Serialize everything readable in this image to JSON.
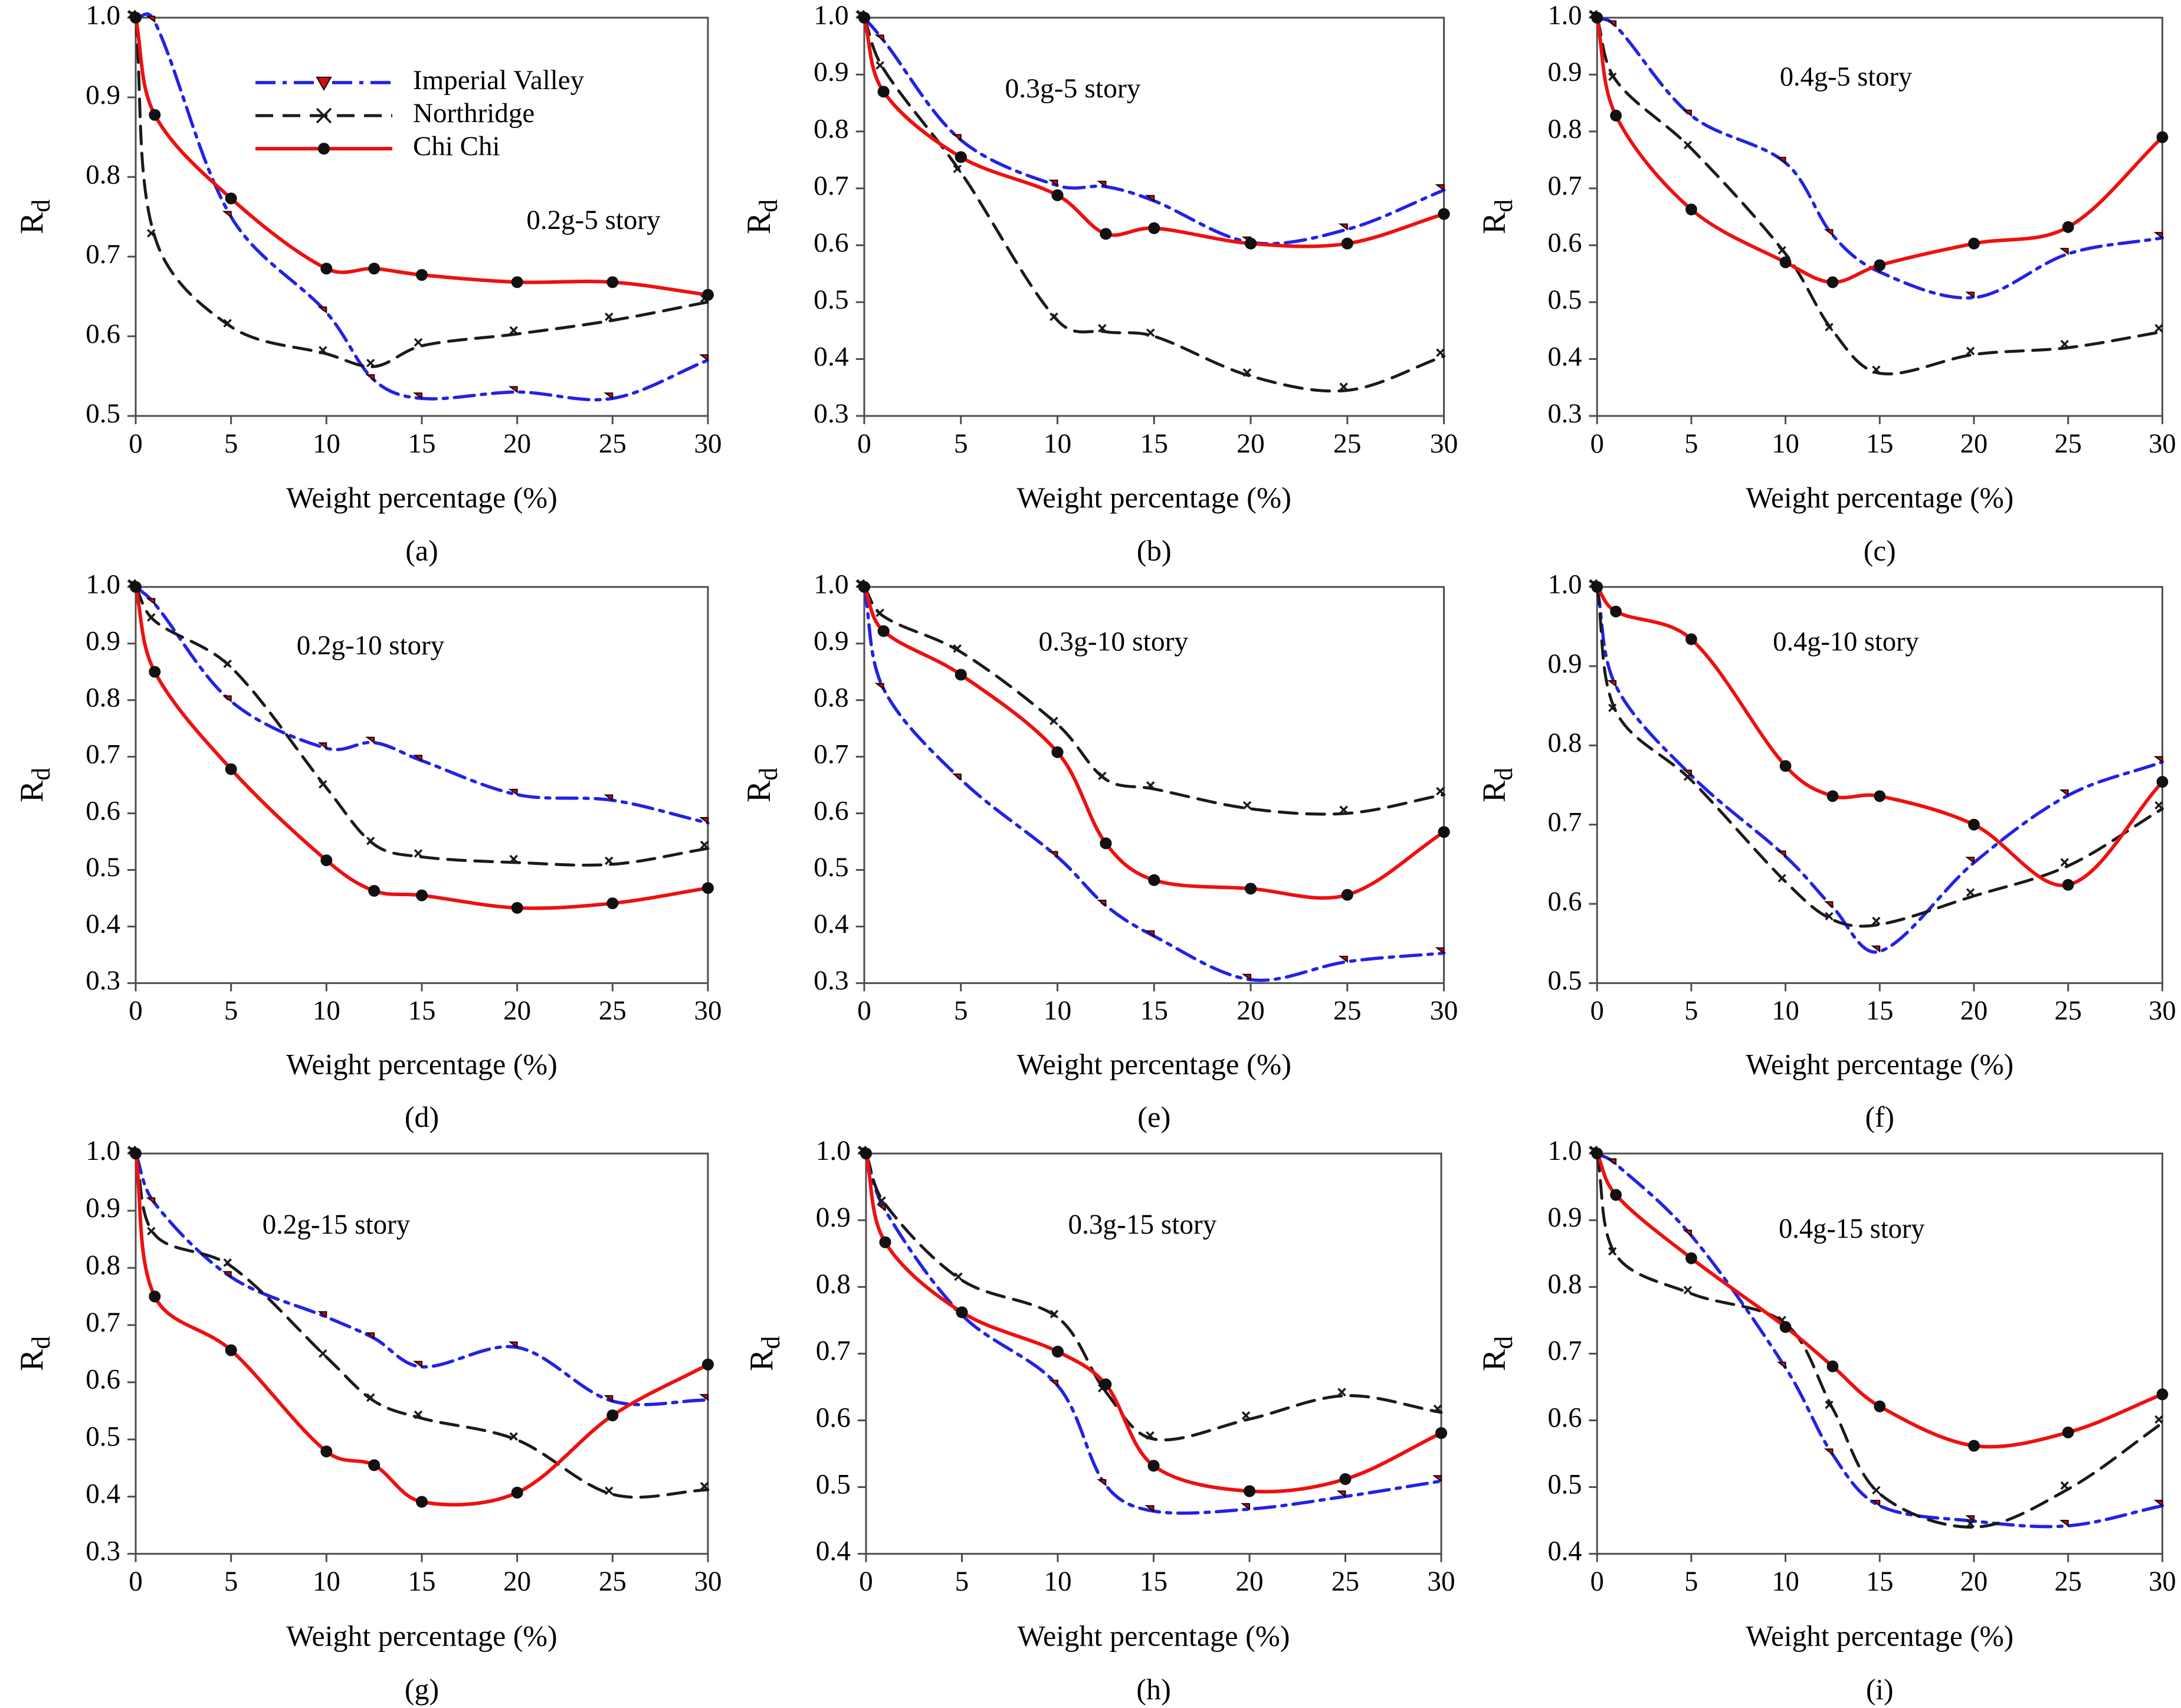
{
  "page": {
    "background": "#ffffff"
  },
  "figure": {
    "xlabel": "Weight percentage (%)",
    "ylabel": "Rd",
    "ylabel_main": "R",
    "ylabel_sub": "d",
    "xlim": [
      0,
      30
    ],
    "xticks": [
      0,
      5,
      10,
      15,
      20,
      25,
      30
    ],
    "x_values": [
      0,
      1,
      5,
      10,
      12.5,
      15,
      20,
      25,
      30
    ],
    "grid": false,
    "legend": {
      "position": "inside-top-left-of-panel-a",
      "labels": [
        "Imperial Valley",
        "Northridge",
        "Chi Chi"
      ]
    },
    "series_meta": [
      {
        "name": "Imperial Valley",
        "line": "dashdot",
        "color": "#2222e6",
        "marker": "triangle-down",
        "marker_color": "#cc1111",
        "marker_edge": "#1a0000"
      },
      {
        "name": "Northridge",
        "line": "dashed",
        "color": "#1a1a1a",
        "marker": "x",
        "marker_color": "#1a1a1a",
        "marker_edge": "#1a1a1a"
      },
      {
        "name": "Chi Chi",
        "line": "solid",
        "color": "#ee1010",
        "marker": "circle",
        "marker_color": "#111111",
        "marker_edge": "#111111"
      }
    ],
    "frame_color": "#4d4d4d"
  },
  "chart_data": [
    {
      "type": "line",
      "panel_label": "(a)",
      "title": "0.2g-5 story",
      "ylim": [
        0.5,
        1.0
      ],
      "ytick_step": 0.1,
      "legend": true,
      "title_fx": 0.8,
      "title_fy": 0.53,
      "x": [
        0,
        1,
        5,
        10,
        12.5,
        15,
        20,
        25,
        30
      ],
      "series": [
        {
          "name": "Imperial Valley",
          "values": [
            1.0,
            0.995,
            0.75,
            0.63,
            0.545,
            0.522,
            0.53,
            0.522,
            0.57
          ]
        },
        {
          "name": "Northridge",
          "values": [
            1.0,
            0.725,
            0.612,
            0.578,
            0.562,
            0.588,
            0.603,
            0.62,
            0.643
          ]
        },
        {
          "name": "Chi Chi",
          "values": [
            1.0,
            0.878,
            0.773,
            0.685,
            0.685,
            0.677,
            0.668,
            0.668,
            0.652
          ]
        }
      ]
    },
    {
      "type": "line",
      "panel_label": "(b)",
      "title": "0.3g-5 story",
      "ylim": [
        0.3,
        1.0
      ],
      "ytick_step": 0.1,
      "legend": false,
      "title_fx": 0.36,
      "title_fy": 0.2,
      "x": [
        0,
        1,
        5,
        10,
        12.5,
        15,
        20,
        25,
        30
      ],
      "series": [
        {
          "name": "Imperial Valley",
          "values": [
            1.0,
            0.96,
            0.785,
            0.705,
            0.703,
            0.678,
            0.605,
            0.628,
            0.697
          ]
        },
        {
          "name": "Northridge",
          "values": [
            1.0,
            0.91,
            0.728,
            0.468,
            0.448,
            0.44,
            0.37,
            0.345,
            0.405
          ]
        },
        {
          "name": "Chi Chi",
          "values": [
            1.0,
            0.87,
            0.755,
            0.688,
            0.62,
            0.63,
            0.603,
            0.603,
            0.655
          ]
        }
      ]
    },
    {
      "type": "line",
      "panel_label": "(c)",
      "title": "0.4g-5 story",
      "ylim": [
        0.3,
        1.0
      ],
      "ytick_step": 0.1,
      "legend": false,
      "title_fx": 0.44,
      "title_fy": 0.17,
      "x": [
        0,
        1,
        5,
        10,
        12.5,
        15,
        20,
        25,
        30
      ],
      "series": [
        {
          "name": "Imperial Valley",
          "values": [
            1.0,
            0.985,
            0.828,
            0.745,
            0.618,
            0.553,
            0.508,
            0.585,
            0.613
          ]
        },
        {
          "name": "Northridge",
          "values": [
            1.0,
            0.89,
            0.77,
            0.585,
            0.45,
            0.375,
            0.408,
            0.42,
            0.448
          ]
        },
        {
          "name": "Chi Chi",
          "values": [
            1.0,
            0.828,
            0.663,
            0.57,
            0.535,
            0.565,
            0.603,
            0.632,
            0.79
          ]
        }
      ]
    },
    {
      "type": "line",
      "panel_label": "(d)",
      "title": "0.2g-10 story",
      "ylim": [
        0.3,
        1.0
      ],
      "ytick_step": 0.1,
      "legend": false,
      "title_fx": 0.41,
      "title_fy": 0.17,
      "x": [
        0,
        1,
        5,
        10,
        12.5,
        15,
        20,
        25,
        30
      ],
      "series": [
        {
          "name": "Imperial Valley",
          "values": [
            1.0,
            0.97,
            0.798,
            0.715,
            0.725,
            0.693,
            0.633,
            0.623,
            0.583
          ]
        },
        {
          "name": "Northridge",
          "values": [
            1.0,
            0.94,
            0.858,
            0.645,
            0.545,
            0.523,
            0.513,
            0.51,
            0.538
          ]
        },
        {
          "name": "Chi Chi",
          "values": [
            1.0,
            0.85,
            0.678,
            0.517,
            0.463,
            0.455,
            0.433,
            0.441,
            0.468
          ]
        }
      ]
    },
    {
      "type": "line",
      "panel_label": "(e)",
      "title": "0.3g-10 story",
      "ylim": [
        0.3,
        1.0
      ],
      "ytick_step": 0.1,
      "legend": false,
      "title_fx": 0.43,
      "title_fy": 0.16,
      "x": [
        0,
        1,
        5,
        10,
        12.5,
        15,
        20,
        25,
        30
      ],
      "series": [
        {
          "name": "Imperial Valley",
          "values": [
            1.0,
            0.82,
            0.66,
            0.523,
            0.437,
            0.383,
            0.306,
            0.338,
            0.353
          ]
        },
        {
          "name": "Northridge",
          "values": [
            1.0,
            0.948,
            0.885,
            0.757,
            0.66,
            0.643,
            0.608,
            0.6,
            0.633
          ]
        },
        {
          "name": "Chi Chi",
          "values": [
            1.0,
            0.922,
            0.845,
            0.708,
            0.547,
            0.482,
            0.467,
            0.456,
            0.567
          ]
        }
      ]
    },
    {
      "type": "line",
      "panel_label": "(f)",
      "title": "0.4g-10 story",
      "ylim": [
        0.5,
        1.0
      ],
      "ytick_step": 0.1,
      "legend": false,
      "title_fx": 0.44,
      "title_fy": 0.16,
      "x": [
        0,
        1,
        5,
        10,
        12.5,
        15,
        20,
        25,
        30
      ],
      "series": [
        {
          "name": "Imperial Valley",
          "values": [
            1.0,
            0.875,
            0.762,
            0.66,
            0.596,
            0.54,
            0.652,
            0.737,
            0.779
          ]
        },
        {
          "name": "Northridge",
          "values": [
            1.0,
            0.843,
            0.756,
            0.628,
            0.58,
            0.574,
            0.61,
            0.648,
            0.72
          ]
        },
        {
          "name": "Chi Chi",
          "values": [
            1.0,
            0.969,
            0.934,
            0.774,
            0.736,
            0.736,
            0.7,
            0.624,
            0.754
          ]
        }
      ]
    },
    {
      "type": "line",
      "panel_label": "(g)",
      "title": "0.2g-15 story",
      "ylim": [
        0.3,
        1.0
      ],
      "ytick_step": 0.1,
      "legend": false,
      "title_fx": 0.35,
      "title_fy": 0.2,
      "x": [
        0,
        1,
        5,
        10,
        12.5,
        15,
        20,
        25,
        30
      ],
      "series": [
        {
          "name": "Imperial Valley",
          "values": [
            1.0,
            0.913,
            0.784,
            0.714,
            0.677,
            0.627,
            0.661,
            0.567,
            0.569
          ]
        },
        {
          "name": "Northridge",
          "values": [
            1.0,
            0.858,
            0.803,
            0.644,
            0.567,
            0.537,
            0.499,
            0.404,
            0.412
          ]
        },
        {
          "name": "Chi Chi",
          "values": [
            1.0,
            0.75,
            0.656,
            0.479,
            0.455,
            0.391,
            0.407,
            0.542,
            0.631
          ]
        }
      ]
    },
    {
      "type": "line",
      "panel_label": "(h)",
      "title": "0.3g-15 story",
      "ylim": [
        0.4,
        1.0
      ],
      "ytick_step": 0.1,
      "legend": false,
      "title_fx": 0.48,
      "title_fy": 0.2,
      "x": [
        0,
        1,
        5,
        10,
        12.5,
        15,
        20,
        25,
        30
      ],
      "series": [
        {
          "name": "Imperial Valley",
          "values": [
            1.0,
            0.915,
            0.758,
            0.652,
            0.503,
            0.464,
            0.467,
            0.486,
            0.509
          ]
        },
        {
          "name": "Northridge",
          "values": [
            1.0,
            0.924,
            0.81,
            0.754,
            0.643,
            0.572,
            0.602,
            0.637,
            0.612
          ]
        },
        {
          "name": "Chi Chi",
          "values": [
            1.0,
            0.867,
            0.762,
            0.703,
            0.654,
            0.532,
            0.494,
            0.512,
            0.581
          ]
        }
      ]
    },
    {
      "type": "line",
      "panel_label": "(i)",
      "title": "0.4g-15 story",
      "ylim": [
        0.4,
        1.0
      ],
      "ytick_step": 0.1,
      "legend": false,
      "title_fx": 0.45,
      "title_fy": 0.21,
      "x": [
        0,
        1,
        5,
        10,
        12.5,
        15,
        20,
        25,
        30
      ],
      "series": [
        {
          "name": "Imperial Valley",
          "values": [
            1.0,
            0.984,
            0.877,
            0.679,
            0.549,
            0.472,
            0.449,
            0.442,
            0.472
          ]
        },
        {
          "name": "Northridge",
          "values": [
            1.0,
            0.848,
            0.79,
            0.745,
            0.618,
            0.49,
            0.44,
            0.497,
            0.596
          ]
        },
        {
          "name": "Chi Chi",
          "values": [
            1.0,
            0.938,
            0.843,
            0.74,
            0.681,
            0.621,
            0.562,
            0.582,
            0.639
          ]
        }
      ]
    }
  ]
}
